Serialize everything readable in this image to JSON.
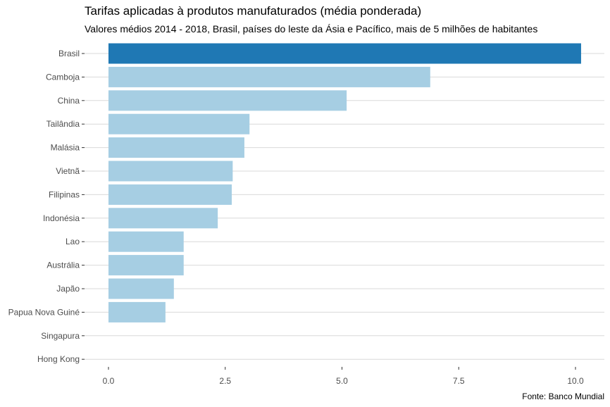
{
  "chart_data": {
    "type": "bar",
    "orientation": "horizontal",
    "title": "Tarifas aplicadas à produtos manufaturados (média ponderada)",
    "subtitle": "Valores médios 2014 - 2018, Brasil, países do leste da Ásia e Pacífico, mais de 5 milhões de habitantes",
    "caption": "Fonte: Banco Mundial",
    "xlabel": "",
    "ylabel": "",
    "categories": [
      "Brasil",
      "Camboja",
      "China",
      "Tailândia",
      "Malásia",
      "Vietnã",
      "Filipinas",
      "Indonésia",
      "Lao",
      "Austrália",
      "Japão",
      "Papua Nova Guiné",
      "Singapura",
      "Hong Kong"
    ],
    "values": [
      10.12,
      6.89,
      5.1,
      3.02,
      2.91,
      2.66,
      2.64,
      2.34,
      1.61,
      1.61,
      1.4,
      1.22,
      0,
      0
    ],
    "highlight": "Brasil",
    "colors": {
      "highlight": "#1f78b4",
      "default": "#a6cee3",
      "grid": "#d9d9d9"
    },
    "xlim": [
      0,
      10.5
    ],
    "xticks": [
      0,
      2.5,
      5,
      7.5,
      10
    ],
    "xtick_labels": [
      "0.0",
      "2.5",
      "5.0",
      "7.5",
      "10.0"
    ],
    "grid": "horizontal major lines"
  }
}
